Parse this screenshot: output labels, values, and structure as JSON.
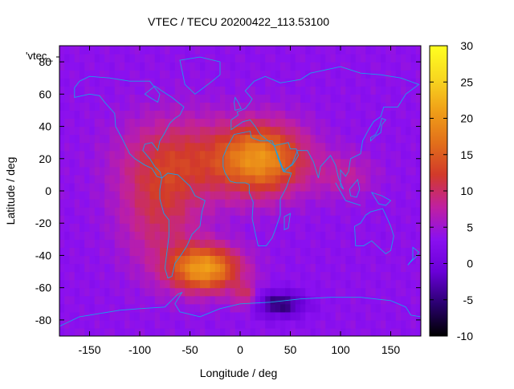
{
  "chart_data": {
    "type": "heatmap",
    "title": "VTEC / TECU 20200422_113.53100",
    "xlabel": "Longitude / deg",
    "ylabel": "Latitude / deg",
    "key_label": "'vtec_",
    "xlim": [
      -180,
      180
    ],
    "ylim": [
      -90,
      90
    ],
    "xticks": [
      -150,
      -100,
      -50,
      0,
      50,
      100,
      150
    ],
    "yticks": [
      -80,
      -60,
      -40,
      -20,
      0,
      20,
      40,
      60,
      80
    ],
    "colorbar": {
      "min": -10,
      "max": 30,
      "ticks": [
        30,
        25,
        20,
        15,
        10,
        5,
        0,
        -5,
        -10
      ]
    },
    "colormap": [
      "#000000",
      "#2a0070",
      "#6a00d8",
      "#8a10f0",
      "#c020a0",
      "#d23a2a",
      "#e2701a",
      "#f0a018",
      "#f8d820",
      "#ffff20"
    ],
    "grid": false,
    "grid_step_deg": 5,
    "background_value": 3.5,
    "blobs": [
      {
        "lon": 20,
        "lat": 20,
        "slon": 45,
        "slat": 22,
        "amp": 16
      },
      {
        "lon": -35,
        "lat": -48,
        "slon": 35,
        "slat": 14,
        "amp": 17
      },
      {
        "lon": -65,
        "lat": 20,
        "slon": 55,
        "slat": 28,
        "amp": 7
      },
      {
        "lon": -80,
        "lat": -15,
        "slon": 40,
        "slat": 35,
        "amp": 6
      },
      {
        "lon": 105,
        "lat": 10,
        "slon": 30,
        "slat": 14,
        "amp": 4
      },
      {
        "lon": 5,
        "lat": -65,
        "slon": 12,
        "slat": 8,
        "amp": 6
      },
      {
        "lon": 40,
        "lat": -70,
        "slon": 25,
        "slat": 8,
        "amp": -9
      }
    ],
    "map_overlay": "world-coastlines"
  }
}
